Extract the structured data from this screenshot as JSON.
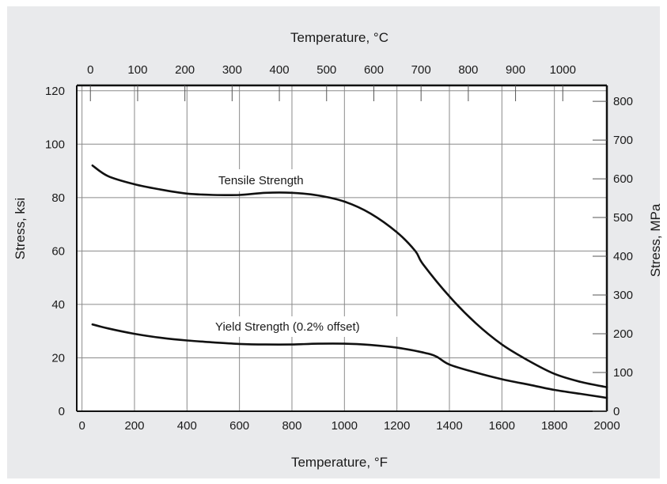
{
  "chart_data": {
    "type": "line",
    "top_axis_title": "Temperature, °C",
    "bottom_axis_title": "Temperature, °F",
    "left_axis_title": "Stress, ksi",
    "right_axis_title": "Stress, MPa",
    "x_range": [
      -20,
      2000
    ],
    "x_ticks": [
      0,
      200,
      400,
      600,
      800,
      1000,
      1200,
      1400,
      1600,
      1800,
      2000
    ],
    "y_left_range": [
      0,
      122
    ],
    "y_left_ticks": [
      0,
      20,
      40,
      60,
      80,
      100,
      120
    ],
    "y_right_range": [
      0,
      841
    ],
    "y_right_ticks": [
      0,
      100,
      200,
      300,
      400,
      500,
      600,
      700,
      800
    ],
    "top_ticks_c": [
      0,
      100,
      200,
      300,
      400,
      500,
      600,
      700,
      800,
      900,
      1000
    ],
    "grid": true,
    "series": [
      {
        "name": "Tensile Strength",
        "x": [
          40,
          100,
          200,
          300,
          400,
          500,
          600,
          700,
          800,
          900,
          1000,
          1100,
          1200,
          1270,
          1300,
          1400,
          1500,
          1600,
          1700,
          1800,
          1900,
          2000
        ],
        "y": [
          92,
          88,
          85,
          83,
          81.5,
          81,
          81,
          81.8,
          81.8,
          80.8,
          78.5,
          74,
          67,
          60,
          55,
          43,
          33,
          25,
          19,
          14,
          11,
          9
        ]
      },
      {
        "name": "Yield Strength (0.2% offset)",
        "x": [
          40,
          100,
          200,
          300,
          400,
          500,
          600,
          700,
          800,
          900,
          1000,
          1100,
          1200,
          1300,
          1350,
          1400,
          1500,
          1600,
          1700,
          1800,
          1900,
          2000
        ],
        "y": [
          32.5,
          31,
          29,
          27.5,
          26.5,
          25.8,
          25.2,
          25,
          25,
          25.3,
          25.3,
          24.8,
          23.8,
          22,
          20.5,
          17.5,
          14.5,
          12,
          10,
          8,
          6.5,
          5
        ]
      }
    ]
  }
}
